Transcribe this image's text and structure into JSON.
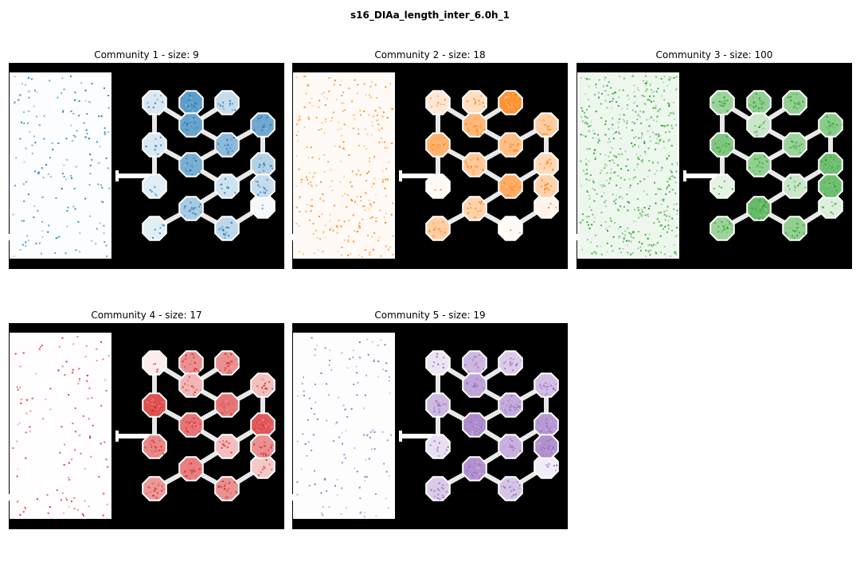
{
  "title": "s16_DIAa_length_inter_6.0h_1",
  "panels": [
    {
      "title": "Community 1 - size: 9",
      "color": "#1f77b4",
      "cmap": "Blues",
      "rect_intensity": 0.12,
      "node_fill": [
        0.2,
        0.85,
        0.3,
        0.75,
        0.2,
        0.8,
        0.6,
        0.4,
        0.15,
        0.7,
        0.25,
        0.05,
        0.15,
        0.45,
        0.35,
        0.3
      ]
    },
    {
      "title": "Community 2 - size: 18",
      "color": "#ff7f0e",
      "cmap": "Oranges",
      "rect_intensity": 0.25,
      "node_fill": [
        0.2,
        0.3,
        1.0,
        0.45,
        0.7,
        0.65,
        0.6,
        0.35,
        0.05,
        0.5,
        0.75,
        0.1,
        0.45,
        0.4,
        0.05,
        0.4
      ]
    },
    {
      "title": "Community 3 - size: 100",
      "color": "#2ca02c",
      "cmap": "Greens",
      "rect_intensity": 0.55,
      "node_fill": [
        0.55,
        0.6,
        0.6,
        0.65,
        0.7,
        0.3,
        0.55,
        0.8,
        0.15,
        0.6,
        0.3,
        0.2,
        0.55,
        0.85,
        0.6,
        0.8
      ]
    },
    {
      "title": "Community 4 - size: 17",
      "color": "#d62728",
      "cmap": "Reds",
      "rect_intensity": 0.06,
      "node_fill": [
        0.1,
        0.6,
        0.6,
        0.35,
        0.95,
        0.4,
        0.75,
        0.9,
        0.65,
        0.75,
        0.35,
        0.3,
        0.55,
        0.7,
        0.6,
        0.6
      ]
    },
    {
      "title": "Community 5 - size: 19",
      "color": "#9467bd",
      "cmap": "Purples",
      "rect_intensity": 0.08,
      "node_fill": [
        0.2,
        0.55,
        0.4,
        0.5,
        0.55,
        0.7,
        0.65,
        0.8,
        0.25,
        0.9,
        0.6,
        0.15,
        0.4,
        0.85,
        0.45,
        0.85
      ]
    }
  ]
}
